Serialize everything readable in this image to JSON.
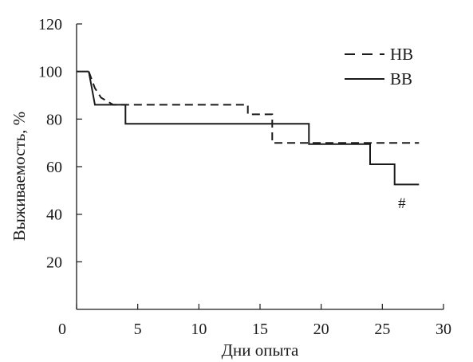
{
  "chart_data": {
    "type": "line",
    "step": true,
    "title": "",
    "xlabel": "Дни опыта",
    "ylabel": "Выживаемость, %",
    "xlim": [
      0,
      30
    ],
    "ylim": [
      0,
      120
    ],
    "xticks": [
      0,
      5,
      10,
      15,
      20,
      25,
      30
    ],
    "yticks": [
      20,
      40,
      60,
      80,
      100,
      120
    ],
    "grid": false,
    "legend_position": "top-right",
    "series": [
      {
        "name": "НВ",
        "style": "dashed",
        "color": "#1a1a1a",
        "points": [
          [
            1,
            100
          ],
          [
            1.5,
            93
          ],
          [
            2,
            89
          ],
          [
            3,
            86
          ],
          [
            14,
            86
          ],
          [
            14,
            82
          ],
          [
            16,
            82
          ],
          [
            16,
            70
          ],
          [
            28,
            70
          ]
        ]
      },
      {
        "name": "ВВ",
        "style": "solid",
        "color": "#1a1a1a",
        "points": [
          [
            1,
            100
          ],
          [
            1.5,
            86
          ],
          [
            4,
            86
          ],
          [
            4,
            78
          ],
          [
            19,
            78
          ],
          [
            19,
            69.5
          ],
          [
            24,
            69.5
          ],
          [
            24,
            61
          ],
          [
            26,
            61
          ],
          [
            26,
            52.5
          ],
          [
            28,
            52.5
          ]
        ]
      }
    ],
    "annotations": [
      {
        "text": "#",
        "x": 26.6,
        "y": 45
      }
    ]
  }
}
